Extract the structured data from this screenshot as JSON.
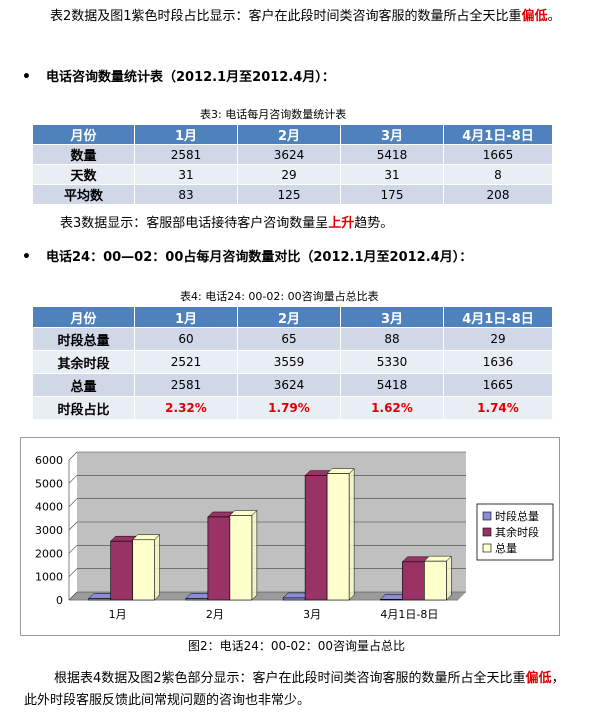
{
  "intro": {
    "part1": "表2数据及图1紫色时段占比显示：客户在此段时间类咨询客服的数量所占全天比重",
    "emphasis": "偏低",
    "part2": "。"
  },
  "section1": {
    "bullet": "•",
    "title": "电话咨询数量统计表（2012.1月至2012.4月）："
  },
  "table3": {
    "caption": "表3: 电话每月咨询数量统计表",
    "headers": [
      "月份",
      "1月",
      "2月",
      "3月",
      "4月1日-8日"
    ],
    "rows": [
      [
        "数量",
        "2581",
        "3624",
        "5418",
        "1665"
      ],
      [
        "天数",
        "31",
        "29",
        "31",
        "8"
      ],
      [
        "平均数",
        "83",
        "125",
        "175",
        "208"
      ]
    ]
  },
  "note3": {
    "part1": "表3数据显示：客服部电话接待客户咨询数量呈",
    "emphasis": "上升",
    "part2": "趋势。"
  },
  "section2": {
    "bullet": "•",
    "title": "电话24：00—02：00占每月咨询数量对比（2012.1月至2012.4月）："
  },
  "table4": {
    "caption": "表4: 电话24: 00-02: 00咨询量占总比表",
    "headers": [
      "月份",
      "1月",
      "2月",
      "3月",
      "4月1日-8日"
    ],
    "rows": [
      [
        "时段总量",
        "60",
        "65",
        "88",
        "29"
      ],
      [
        "其余时段",
        "2521",
        "3559",
        "5330",
        "1636"
      ],
      [
        "总量",
        "2581",
        "3624",
        "5418",
        "1665"
      ]
    ],
    "pct_row": [
      "时段占比",
      "2.32%",
      "1.79%",
      "1.62%",
      "1.74%"
    ]
  },
  "chart_data": {
    "type": "bar",
    "categories": [
      "1月",
      "2月",
      "3月",
      "4月1日-8日"
    ],
    "series": [
      {
        "name": "时段总量",
        "values": [
          60,
          65,
          88,
          29
        ],
        "color": "#8b8bd6"
      },
      {
        "name": "其余时段",
        "values": [
          2521,
          3559,
          5330,
          1636
        ],
        "color": "#993366"
      },
      {
        "name": "总量",
        "values": [
          2581,
          3624,
          5418,
          1665
        ],
        "color": "#ffffcc"
      }
    ],
    "yticks": [
      "0",
      "1000",
      "2000",
      "3000",
      "4000",
      "5000",
      "6000"
    ],
    "ylim": [
      0,
      6000
    ],
    "plot_background": "#c0c0c0",
    "grid": true,
    "legend": "right",
    "caption": "图2：电话24：00-02：00咨询量占总比"
  },
  "outro": {
    "part1": "根据表4数据及图2紫色部分显示：客户在此段时间类咨询客服的数量所占全天比重",
    "emphasis": "偏低",
    "part2": "，此外时段客服反馈此间常规问题的咨询也非常少。"
  }
}
